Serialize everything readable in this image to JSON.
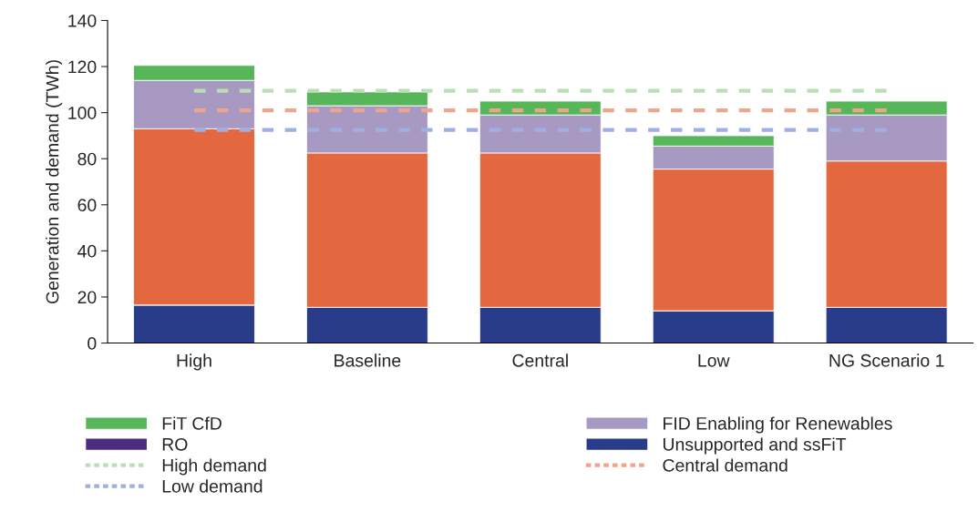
{
  "chart_data": {
    "type": "bar",
    "stacked": true,
    "ylabel": "Generation and demand (TWh)",
    "categories": [
      "High",
      "Baseline",
      "Central",
      "Low",
      "NG Scenario 1"
    ],
    "ylim": [
      0,
      140
    ],
    "yticks": [
      0,
      20,
      40,
      60,
      80,
      100,
      120,
      140
    ],
    "grid": false,
    "legend": "bottom",
    "series": [
      {
        "name": "Unsupported and ssFiT",
        "color": "#283c8a",
        "values": [
          16.5,
          15.5,
          15.5,
          14,
          15.5
        ]
      },
      {
        "name": "RO",
        "color": "#4b2c7f",
        "values": [
          0,
          0,
          0,
          0,
          0
        ]
      },
      {
        "color": "#e4683f",
        "values": [
          76.5,
          67,
          67,
          61.5,
          63.5
        ]
      },
      {
        "name": "FID Enabling for Renewables",
        "color": "#a899c2",
        "values": [
          21,
          20.5,
          16.5,
          10,
          20
        ]
      },
      {
        "name": "FiT CfD",
        "color": "#57b55a",
        "values": [
          6.5,
          6,
          6,
          4.5,
          6
        ]
      },
      {
        "name": "High demand",
        "type": "line",
        "line_style": "dashed",
        "color": "#b9e0b4",
        "values": [
          109.5,
          109.5,
          109.5,
          109.5,
          109.5
        ]
      },
      {
        "name": "Central demand",
        "type": "line",
        "line_style": "dashed",
        "color": "#eea58c",
        "values": [
          101,
          101,
          101,
          101,
          101
        ]
      },
      {
        "name": "Low demand",
        "type": "line",
        "line_style": "dashed",
        "color": "#9fb0e0",
        "values": [
          92.5,
          92.5,
          92.5,
          92.5,
          92.5
        ]
      }
    ]
  }
}
